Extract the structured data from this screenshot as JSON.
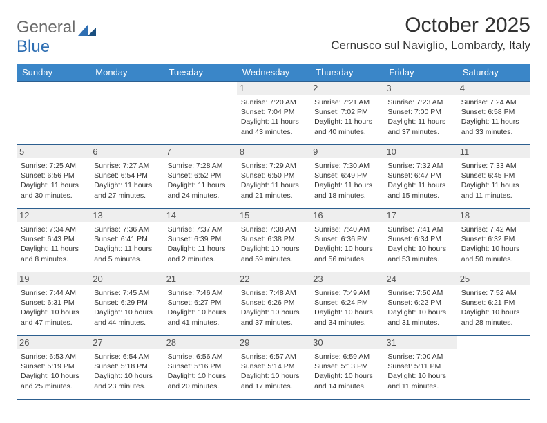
{
  "logo": {
    "text1": "General",
    "text2": "Blue"
  },
  "title": "October 2025",
  "location": "Cernusco sul Naviglio, Lombardy, Italy",
  "colors": {
    "header_bg": "#3a86c8",
    "header_text": "#ffffff",
    "border": "#2d5f8f",
    "daynum_bg": "#eeeeee",
    "text": "#333333"
  },
  "dayHeaders": [
    "Sunday",
    "Monday",
    "Tuesday",
    "Wednesday",
    "Thursday",
    "Friday",
    "Saturday"
  ],
  "weeks": [
    [
      {
        "empty": true
      },
      {
        "empty": true
      },
      {
        "empty": true
      },
      {
        "day": "1",
        "sunrise": "7:20 AM",
        "sunset": "7:04 PM",
        "daylight": "11 hours and 43 minutes."
      },
      {
        "day": "2",
        "sunrise": "7:21 AM",
        "sunset": "7:02 PM",
        "daylight": "11 hours and 40 minutes."
      },
      {
        "day": "3",
        "sunrise": "7:23 AM",
        "sunset": "7:00 PM",
        "daylight": "11 hours and 37 minutes."
      },
      {
        "day": "4",
        "sunrise": "7:24 AM",
        "sunset": "6:58 PM",
        "daylight": "11 hours and 33 minutes."
      }
    ],
    [
      {
        "day": "5",
        "sunrise": "7:25 AM",
        "sunset": "6:56 PM",
        "daylight": "11 hours and 30 minutes."
      },
      {
        "day": "6",
        "sunrise": "7:27 AM",
        "sunset": "6:54 PM",
        "daylight": "11 hours and 27 minutes."
      },
      {
        "day": "7",
        "sunrise": "7:28 AM",
        "sunset": "6:52 PM",
        "daylight": "11 hours and 24 minutes."
      },
      {
        "day": "8",
        "sunrise": "7:29 AM",
        "sunset": "6:50 PM",
        "daylight": "11 hours and 21 minutes."
      },
      {
        "day": "9",
        "sunrise": "7:30 AM",
        "sunset": "6:49 PM",
        "daylight": "11 hours and 18 minutes."
      },
      {
        "day": "10",
        "sunrise": "7:32 AM",
        "sunset": "6:47 PM",
        "daylight": "11 hours and 15 minutes."
      },
      {
        "day": "11",
        "sunrise": "7:33 AM",
        "sunset": "6:45 PM",
        "daylight": "11 hours and 11 minutes."
      }
    ],
    [
      {
        "day": "12",
        "sunrise": "7:34 AM",
        "sunset": "6:43 PM",
        "daylight": "11 hours and 8 minutes."
      },
      {
        "day": "13",
        "sunrise": "7:36 AM",
        "sunset": "6:41 PM",
        "daylight": "11 hours and 5 minutes."
      },
      {
        "day": "14",
        "sunrise": "7:37 AM",
        "sunset": "6:39 PM",
        "daylight": "11 hours and 2 minutes."
      },
      {
        "day": "15",
        "sunrise": "7:38 AM",
        "sunset": "6:38 PM",
        "daylight": "10 hours and 59 minutes."
      },
      {
        "day": "16",
        "sunrise": "7:40 AM",
        "sunset": "6:36 PM",
        "daylight": "10 hours and 56 minutes."
      },
      {
        "day": "17",
        "sunrise": "7:41 AM",
        "sunset": "6:34 PM",
        "daylight": "10 hours and 53 minutes."
      },
      {
        "day": "18",
        "sunrise": "7:42 AM",
        "sunset": "6:32 PM",
        "daylight": "10 hours and 50 minutes."
      }
    ],
    [
      {
        "day": "19",
        "sunrise": "7:44 AM",
        "sunset": "6:31 PM",
        "daylight": "10 hours and 47 minutes."
      },
      {
        "day": "20",
        "sunrise": "7:45 AM",
        "sunset": "6:29 PM",
        "daylight": "10 hours and 44 minutes."
      },
      {
        "day": "21",
        "sunrise": "7:46 AM",
        "sunset": "6:27 PM",
        "daylight": "10 hours and 41 minutes."
      },
      {
        "day": "22",
        "sunrise": "7:48 AM",
        "sunset": "6:26 PM",
        "daylight": "10 hours and 37 minutes."
      },
      {
        "day": "23",
        "sunrise": "7:49 AM",
        "sunset": "6:24 PM",
        "daylight": "10 hours and 34 minutes."
      },
      {
        "day": "24",
        "sunrise": "7:50 AM",
        "sunset": "6:22 PM",
        "daylight": "10 hours and 31 minutes."
      },
      {
        "day": "25",
        "sunrise": "7:52 AM",
        "sunset": "6:21 PM",
        "daylight": "10 hours and 28 minutes."
      }
    ],
    [
      {
        "day": "26",
        "sunrise": "6:53 AM",
        "sunset": "5:19 PM",
        "daylight": "10 hours and 25 minutes."
      },
      {
        "day": "27",
        "sunrise": "6:54 AM",
        "sunset": "5:18 PM",
        "daylight": "10 hours and 23 minutes."
      },
      {
        "day": "28",
        "sunrise": "6:56 AM",
        "sunset": "5:16 PM",
        "daylight": "10 hours and 20 minutes."
      },
      {
        "day": "29",
        "sunrise": "6:57 AM",
        "sunset": "5:14 PM",
        "daylight": "10 hours and 17 minutes."
      },
      {
        "day": "30",
        "sunrise": "6:59 AM",
        "sunset": "5:13 PM",
        "daylight": "10 hours and 14 minutes."
      },
      {
        "day": "31",
        "sunrise": "7:00 AM",
        "sunset": "5:11 PM",
        "daylight": "10 hours and 11 minutes."
      },
      {
        "empty": true
      }
    ]
  ],
  "labels": {
    "sunrise": "Sunrise:",
    "sunset": "Sunset:",
    "daylight": "Daylight:"
  }
}
